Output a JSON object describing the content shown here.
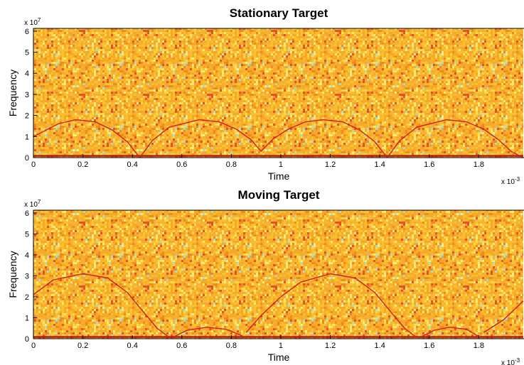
{
  "chart_data": [
    {
      "type": "spectrogram",
      "title": "Stationary Target",
      "x_label": "Time",
      "y_label": "Frequency",
      "y_multiplier": {
        "base": "x 10",
        "exponent": "7"
      },
      "x_multiplier": {
        "base": "x 10",
        "exponent": "-3"
      },
      "xlim": [
        0,
        1.98
      ],
      "ylim": [
        0,
        6.13
      ],
      "xticks": [
        0,
        0.2,
        0.4,
        0.6,
        0.8,
        1,
        1.2,
        1.4,
        1.6,
        1.8
      ],
      "yticks": [
        0,
        1,
        2,
        3,
        4,
        5,
        6
      ],
      "series": [
        {
          "color": "#cc1f1a",
          "x": [
            0,
            0.05,
            0.1,
            0.17,
            0.25,
            0.32,
            0.38,
            0.43,
            0.48,
            0.55,
            0.67,
            0.75,
            0.82,
            0.88,
            0.92,
            0.97,
            1.03,
            1.1,
            1.17,
            1.25,
            1.32,
            1.38,
            1.43,
            1.48,
            1.55,
            1.67,
            1.75,
            1.82,
            1.88,
            1.93,
            1.98
          ],
          "values": [
            1.0,
            1.3,
            1.6,
            1.8,
            1.7,
            1.3,
            0.75,
            0,
            0.8,
            1.45,
            1.8,
            1.7,
            1.35,
            0.85,
            0.3,
            0.9,
            1.35,
            1.7,
            1.8,
            1.7,
            1.3,
            0.75,
            0,
            0.8,
            1.45,
            1.8,
            1.7,
            1.35,
            0.85,
            0.3,
            0
          ]
        }
      ]
    },
    {
      "type": "spectrogram",
      "title": "Moving Target",
      "x_label": "Time",
      "y_label": "Frequency",
      "y_multiplier": {
        "base": "x 10",
        "exponent": "7"
      },
      "x_multiplier": {
        "base": "x 10",
        "exponent": "-3"
      },
      "xlim": [
        0,
        1.98
      ],
      "ylim": [
        0,
        6.13
      ],
      "xticks": [
        0,
        0.2,
        0.4,
        0.6,
        0.8,
        1,
        1.2,
        1.4,
        1.6,
        1.8
      ],
      "yticks": [
        0,
        1,
        2,
        3,
        4,
        5,
        6
      ],
      "series": [
        {
          "color": "#cc1f1a",
          "x": [
            0,
            0.08,
            0.2,
            0.3,
            0.38,
            0.45,
            0.5,
            0.55,
            null,
            0.56,
            0.62,
            0.7,
            0.78,
            0.85,
            null,
            0.86,
            0.92,
            1.0,
            1.08,
            1.2,
            1.3,
            1.38,
            1.45,
            1.5,
            1.55,
            null,
            1.56,
            1.62,
            1.68,
            1.75,
            1.8,
            null,
            1.82,
            1.9,
            1.98
          ],
          "values": [
            2.1,
            2.8,
            3.1,
            2.9,
            2.2,
            1.2,
            0.5,
            0.05,
            null,
            0.05,
            0.4,
            0.55,
            0.45,
            0.1,
            null,
            0.3,
            1.1,
            2.0,
            2.7,
            3.1,
            2.9,
            2.2,
            1.2,
            0.5,
            0.05,
            null,
            0.05,
            0.4,
            0.55,
            0.45,
            0.1,
            null,
            0.3,
            0.9,
            1.8
          ]
        }
      ]
    }
  ]
}
